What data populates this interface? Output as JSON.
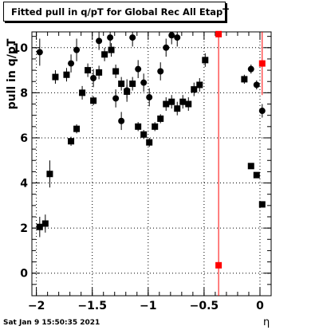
{
  "title": "Fitted pull in q/pT for Global Rec All EtapT",
  "timestamp": "Sat Jan  9 15:50:35 2021",
  "chart_data": {
    "type": "scatter",
    "title": "Fitted pull in q/pT for Global Rec All EtapT",
    "xlabel": "η",
    "ylabel": "pull in q/pT",
    "xlim": [
      -2.04,
      0.1
    ],
    "ylim": [
      -1.0,
      10.7
    ],
    "xticks": [
      -2,
      -1.5,
      -1,
      -0.5,
      0
    ],
    "xtick_labels": [
      "−2",
      "−1.5",
      "−1",
      "−0.5",
      "0"
    ],
    "yticks": [
      0,
      2,
      4,
      6,
      8,
      10
    ],
    "ytick_labels": [
      "0",
      "2",
      "4",
      "6",
      "8",
      "10"
    ],
    "grid": true,
    "series": [
      {
        "marker": "square",
        "color": "#000000",
        "points": [
          {
            "x": -1.97,
            "y": 2.05,
            "err": 0.45
          },
          {
            "x": -1.92,
            "y": 2.2,
            "err": 0.4
          },
          {
            "x": -1.88,
            "y": 4.4,
            "err": 0.6
          },
          {
            "x": -1.83,
            "y": 8.7,
            "err": 0.3
          },
          {
            "x": -1.73,
            "y": 8.8,
            "err": 0.3
          },
          {
            "x": -1.69,
            "y": 5.85,
            "err": 0.2
          },
          {
            "x": -1.64,
            "y": 6.4,
            "err": 0.2
          },
          {
            "x": -1.59,
            "y": 8.0,
            "err": 0.3
          },
          {
            "x": -1.54,
            "y": 9.0,
            "err": 0.3
          },
          {
            "x": -1.49,
            "y": 7.65,
            "err": 0.2
          },
          {
            "x": -1.44,
            "y": 8.9,
            "err": 0.3
          },
          {
            "x": -1.39,
            "y": 9.7,
            "err": 0.3
          },
          {
            "x": -1.33,
            "y": 9.9,
            "err": 0.3
          },
          {
            "x": -1.29,
            "y": 8.95,
            "err": 0.3
          },
          {
            "x": -1.24,
            "y": 8.4,
            "err": 0.3
          },
          {
            "x": -1.19,
            "y": 8.05,
            "err": 0.3
          },
          {
            "x": -1.14,
            "y": 8.4,
            "err": 0.3
          },
          {
            "x": -1.09,
            "y": 6.5,
            "err": 0.2
          },
          {
            "x": -1.04,
            "y": 6.15,
            "err": 0.2
          },
          {
            "x": -0.99,
            "y": 5.8,
            "err": 0.2
          },
          {
            "x": -0.94,
            "y": 6.5,
            "err": 0.2
          },
          {
            "x": -0.89,
            "y": 6.85,
            "err": 0.2
          },
          {
            "x": -0.84,
            "y": 7.5,
            "err": 0.3
          },
          {
            "x": -0.79,
            "y": 7.6,
            "err": 0.3
          },
          {
            "x": -0.74,
            "y": 7.3,
            "err": 0.3
          },
          {
            "x": -0.69,
            "y": 7.6,
            "err": 0.3
          },
          {
            "x": -0.64,
            "y": 7.5,
            "err": 0.3
          },
          {
            "x": -0.59,
            "y": 8.15,
            "err": 0.3
          },
          {
            "x": -0.54,
            "y": 8.35,
            "err": 0.3
          },
          {
            "x": -0.49,
            "y": 9.45,
            "err": 0.3
          },
          {
            "x": -0.14,
            "y": 8.6,
            "err": 0.2
          },
          {
            "x": -0.08,
            "y": 4.75,
            "err": 0.1
          },
          {
            "x": -0.03,
            "y": 4.35,
            "err": 0.1
          },
          {
            "x": 0.02,
            "y": 3.05,
            "err": 0.1
          }
        ]
      },
      {
        "marker": "circle",
        "color": "#000000",
        "points": [
          {
            "x": -1.97,
            "y": 9.8,
            "err": 0.6
          },
          {
            "x": -1.69,
            "y": 9.3,
            "err": 0.4
          },
          {
            "x": -1.64,
            "y": 9.9,
            "err": 0.5
          },
          {
            "x": -1.49,
            "y": 8.65,
            "err": 0.4
          },
          {
            "x": -1.44,
            "y": 10.3,
            "err": 0.4
          },
          {
            "x": -1.34,
            "y": 10.45,
            "err": 0.4
          },
          {
            "x": -1.29,
            "y": 7.75,
            "err": 0.4
          },
          {
            "x": -1.24,
            "y": 6.75,
            "err": 0.4
          },
          {
            "x": -1.19,
            "y": 8.1,
            "err": 0.5
          },
          {
            "x": -1.14,
            "y": 10.45,
            "err": 0.4
          },
          {
            "x": -1.09,
            "y": 9.05,
            "err": 0.4
          },
          {
            "x": -1.04,
            "y": 8.45,
            "err": 0.4
          },
          {
            "x": -0.99,
            "y": 7.8,
            "err": 0.4
          },
          {
            "x": -0.89,
            "y": 8.95,
            "err": 0.4
          },
          {
            "x": -0.84,
            "y": 10.0,
            "err": 0.4
          },
          {
            "x": -0.79,
            "y": 10.55,
            "err": 0.4
          },
          {
            "x": -0.74,
            "y": 10.45,
            "err": 0.4
          },
          {
            "x": -0.03,
            "y": 8.35,
            "err": 0.2
          },
          {
            "x": 0.02,
            "y": 7.2,
            "err": 0.3
          },
          {
            "x": -0.08,
            "y": 9.05,
            "err": 0.2
          }
        ]
      },
      {
        "marker": "square",
        "color": "#ff0000",
        "points": [
          {
            "x": -0.37,
            "y": 0.35,
            "err": 10.5
          },
          {
            "x": -0.37,
            "y": 10.6,
            "err": 0
          },
          {
            "x": 0.02,
            "y": 9.3,
            "err": 1.4
          }
        ]
      }
    ]
  }
}
